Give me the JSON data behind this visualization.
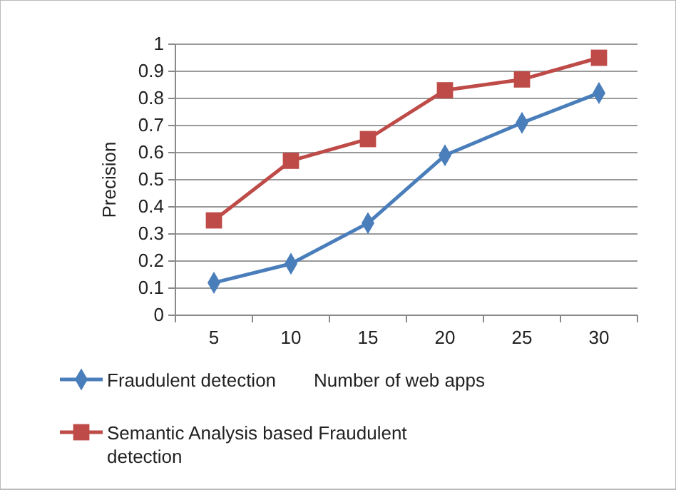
{
  "chart_data": {
    "type": "line",
    "xlabel": "Number of web apps",
    "ylabel": "Precision",
    "categories": [
      "5",
      "10",
      "15",
      "20",
      "25",
      "30"
    ],
    "series": [
      {
        "name": "Fraudulent detection",
        "color": "#4a7ebb",
        "marker": "diamond",
        "values": [
          0.12,
          0.19,
          0.34,
          0.59,
          0.71,
          0.82
        ]
      },
      {
        "name": "Semantic Analysis based Fraudulent detection",
        "color": "#be4b48",
        "marker": "square",
        "values": [
          0.35,
          0.57,
          0.65,
          0.83,
          0.87,
          0.95
        ]
      }
    ],
    "ylim": [
      0,
      1
    ],
    "yticks": [
      0,
      0.1,
      0.2,
      0.3,
      0.4,
      0.5,
      0.6,
      0.7,
      0.8,
      0.9,
      1
    ],
    "grid": "y",
    "legend": "bottom left"
  }
}
